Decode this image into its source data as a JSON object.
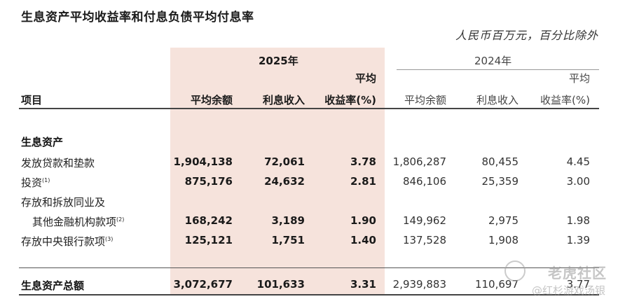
{
  "title": "生息资产平均收益率和付息负债平均付息率",
  "unit_note": "人民币百万元，百分比除外",
  "header": {
    "year_2025": "2025年",
    "year_2024": "2024年",
    "item": "项目",
    "avg_balance": "平均余额",
    "interest_income": "利息收入",
    "yield_line1": "平均",
    "yield_line2": "收益率(%)"
  },
  "section": "生息资产",
  "rows": [
    {
      "label": "发放贷款和垫款",
      "note": "",
      "v2025": [
        "1,904,138",
        "72,061",
        "3.78"
      ],
      "v2024": [
        "1,806,287",
        "80,455",
        "4.45"
      ]
    },
    {
      "label": "投资",
      "note": "(1)",
      "v2025": [
        "875,176",
        "24,632",
        "2.81"
      ],
      "v2024": [
        "846,106",
        "25,359",
        "3.00"
      ]
    },
    {
      "label": "存放和拆放同业及",
      "note": "",
      "v2025": [
        "",
        "",
        ""
      ],
      "v2024": [
        "",
        "",
        ""
      ]
    },
    {
      "label": "其他金融机构款项",
      "note": "(2)",
      "v2025": [
        "168,242",
        "3,189",
        "1.90"
      ],
      "v2024": [
        "149,962",
        "2,975",
        "1.98"
      ]
    },
    {
      "label": "存放中央银行款项",
      "note": "(3)",
      "v2025": [
        "125,121",
        "1,751",
        "1.40"
      ],
      "v2024": [
        "137,528",
        "1,908",
        "1.39"
      ]
    }
  ],
  "total": {
    "label": "生息资产总额",
    "v2025": [
      "3,072,677",
      "101,633",
      "3.31"
    ],
    "v2024": [
      "2,939,883",
      "110,697",
      "3.77"
    ]
  },
  "watermark": {
    "line1": "老虎社区",
    "line2": "@红杉游戏汤银"
  }
}
